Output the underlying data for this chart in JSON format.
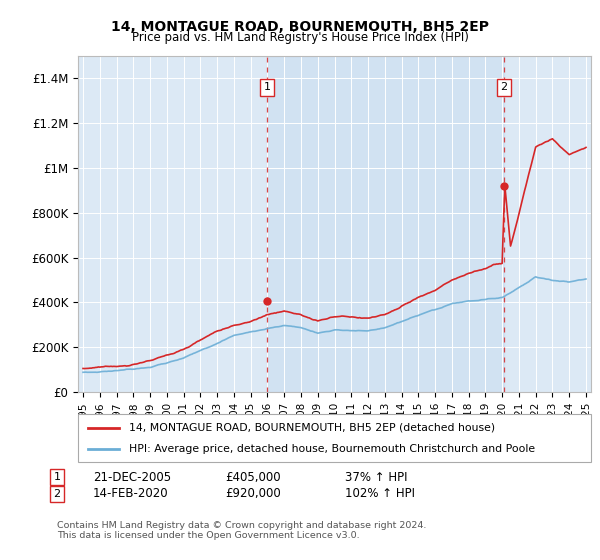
{
  "title": "14, MONTAGUE ROAD, BOURNEMOUTH, BH5 2EP",
  "subtitle": "Price paid vs. HM Land Registry's House Price Index (HPI)",
  "background_color": "#dce9f5",
  "highlight_color": "#e8f0f8",
  "hpi_color": "#6baed6",
  "price_color": "#d62728",
  "vline_color": "#d62728",
  "grid_color": "#ffffff",
  "ylim": [
    0,
    1500000
  ],
  "yticks": [
    0,
    200000,
    400000,
    600000,
    800000,
    1000000,
    1200000,
    1400000
  ],
  "ytick_labels": [
    "£0",
    "£200K",
    "£400K",
    "£600K",
    "£800K",
    "£1M",
    "£1.2M",
    "£1.4M"
  ],
  "sale1_date": "21-DEC-2005",
  "sale1_price": 405000,
  "sale1_pct": "37%",
  "sale1_x": 2005.97,
  "sale2_date": "14-FEB-2020",
  "sale2_price": 920000,
  "sale2_pct": "102%",
  "sale2_x": 2020.12,
  "legend_label1": "14, MONTAGUE ROAD, BOURNEMOUTH, BH5 2EP (detached house)",
  "legend_label2": "HPI: Average price, detached house, Bournemouth Christchurch and Poole",
  "footnote": "Contains HM Land Registry data © Crown copyright and database right 2024.\nThis data is licensed under the Open Government Licence v3.0."
}
